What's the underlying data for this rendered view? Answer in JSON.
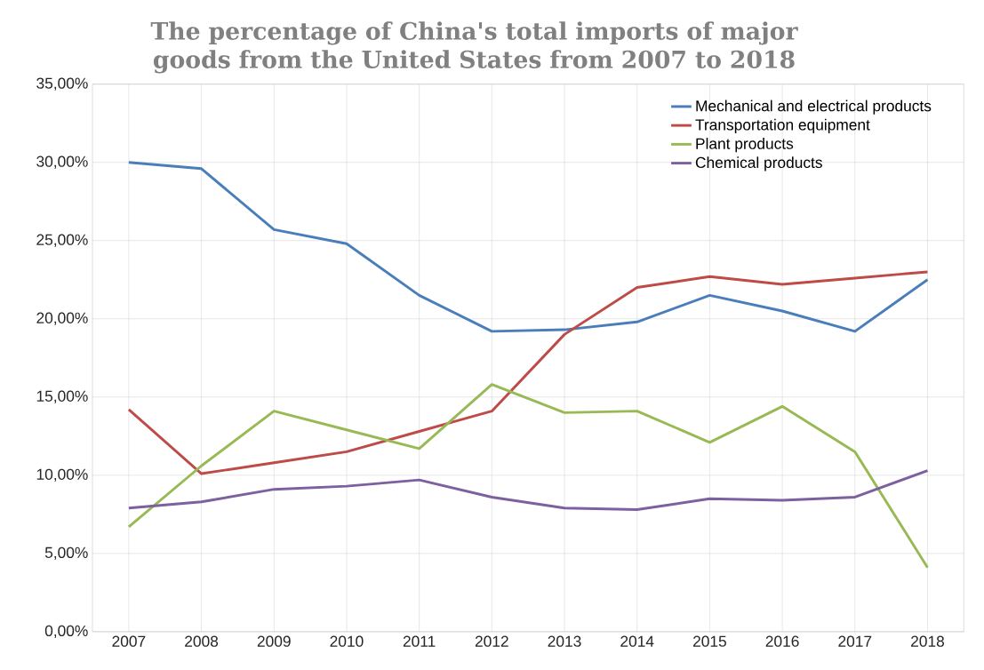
{
  "chart_data": {
    "type": "line",
    "title": "The percentage of China's total imports of major goods from the United States from 2007 to 2018",
    "categories": [
      "2007",
      "2008",
      "2009",
      "2010",
      "2011",
      "2012",
      "2013",
      "2014",
      "2015",
      "2016",
      "2017",
      "2018"
    ],
    "series": [
      {
        "name": "Mechanical and electrical products",
        "color": "#4a7ebb",
        "values": [
          30.0,
          29.6,
          25.7,
          24.8,
          21.5,
          19.2,
          19.3,
          19.8,
          21.5,
          20.5,
          19.2,
          22.5
        ]
      },
      {
        "name": "Transportation equipment",
        "color": "#be4b48",
        "values": [
          14.2,
          10.1,
          10.8,
          11.5,
          12.8,
          14.1,
          19.0,
          22.0,
          22.7,
          22.2,
          22.6,
          23.0
        ]
      },
      {
        "name": "Plant products",
        "color": "#98b954",
        "values": [
          6.7,
          10.6,
          14.1,
          12.9,
          11.7,
          15.8,
          14.0,
          14.1,
          12.1,
          14.4,
          11.5,
          4.1
        ]
      },
      {
        "name": "Chemical products",
        "color": "#7d60a0",
        "values": [
          7.9,
          8.3,
          9.1,
          9.3,
          9.7,
          8.6,
          7.9,
          7.8,
          8.5,
          8.4,
          8.6,
          10.3
        ]
      }
    ],
    "ylim": [
      0,
      35
    ],
    "yticks": [
      {
        "value": 0,
        "label": "0,00%"
      },
      {
        "value": 5,
        "label": "5,00%"
      },
      {
        "value": 10,
        "label": "10,00%"
      },
      {
        "value": 15,
        "label": "15,00%"
      },
      {
        "value": 20,
        "label": "20,00%"
      },
      {
        "value": 25,
        "label": "25,00%"
      },
      {
        "value": 30,
        "label": "30,00%"
      },
      {
        "value": 35,
        "label": "35,00%"
      }
    ],
    "grid": true,
    "legend": "top right",
    "marker": "none",
    "line_style": "solid"
  }
}
